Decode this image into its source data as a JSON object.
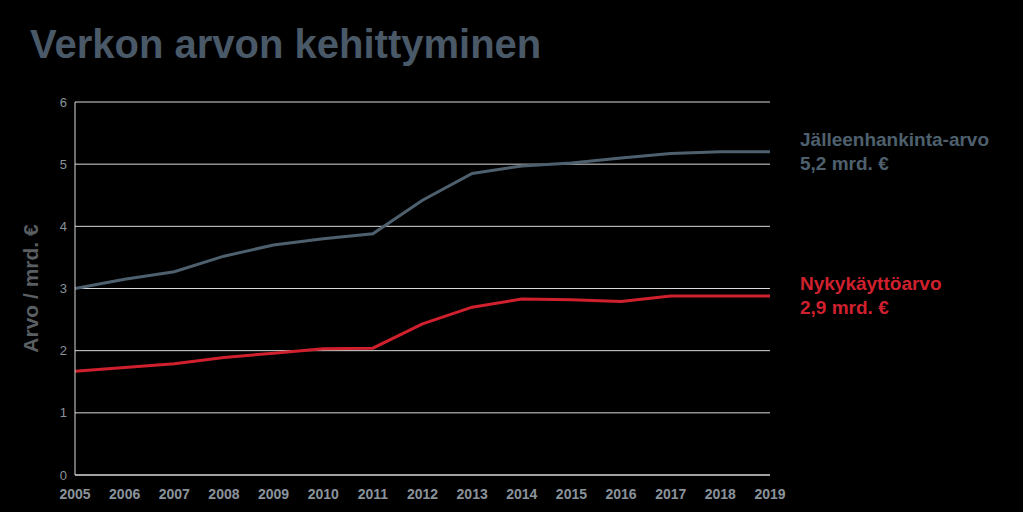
{
  "chart_data": {
    "type": "line",
    "title": "Verkon arvon kehittyminen",
    "y_label": "Arvo / mrd. €",
    "categories": [
      "2005",
      "2006",
      "2007",
      "2008",
      "2009",
      "2010",
      "2011",
      "2012",
      "2013",
      "2014",
      "2015",
      "2016",
      "2017",
      "2018",
      "2019"
    ],
    "series": [
      {
        "name": "Jälleenhankinta-arvo",
        "color": "#4e606e",
        "end_label": "5,2 mrd. €",
        "values": [
          3.0,
          3.15,
          3.27,
          3.52,
          3.7,
          3.8,
          3.88,
          4.42,
          4.85,
          4.97,
          5.02,
          5.1,
          5.17,
          5.2,
          5.2
        ]
      },
      {
        "name": "Nykykäyttöarvo",
        "color": "#d0202e",
        "end_label": "2,9 mrd. €",
        "values": [
          1.67,
          1.73,
          1.79,
          1.89,
          1.96,
          2.03,
          2.04,
          2.43,
          2.7,
          2.83,
          2.82,
          2.79,
          2.88,
          2.88,
          2.88
        ]
      }
    ],
    "ylim": [
      0,
      6
    ],
    "yticks": [
      0,
      1,
      2,
      3,
      4,
      5,
      6
    ],
    "grid": true,
    "legend": "none"
  }
}
